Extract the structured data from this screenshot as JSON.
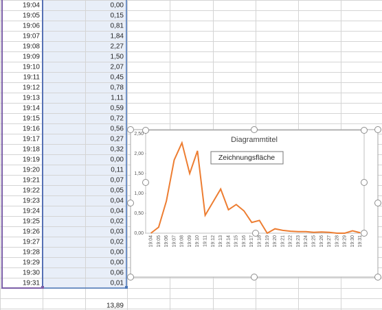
{
  "table": {
    "rows": [
      [
        "19:04",
        "0,00"
      ],
      [
        "19:05",
        "0,15"
      ],
      [
        "19:06",
        "0,81"
      ],
      [
        "19:07",
        "1,84"
      ],
      [
        "19:08",
        "2,27"
      ],
      [
        "19:09",
        "1,50"
      ],
      [
        "19:10",
        "2,07"
      ],
      [
        "19:11",
        "0,45"
      ],
      [
        "19:12",
        "0,78"
      ],
      [
        "19:13",
        "1,11"
      ],
      [
        "19:14",
        "0,59"
      ],
      [
        "19:15",
        "0,72"
      ],
      [
        "19:16",
        "0,56"
      ],
      [
        "19:17",
        "0,27"
      ],
      [
        "19:18",
        "0,32"
      ],
      [
        "19:19",
        "0,00"
      ],
      [
        "19:20",
        "0,11"
      ],
      [
        "19:21",
        "0,07"
      ],
      [
        "19:22",
        "0,05"
      ],
      [
        "19:23",
        "0,04"
      ],
      [
        "19:24",
        "0,04"
      ],
      [
        "19:25",
        "0,02"
      ],
      [
        "19:26",
        "0,03"
      ],
      [
        "19:27",
        "0,02"
      ],
      [
        "19:28",
        "0,00"
      ],
      [
        "19:29",
        "0,00"
      ],
      [
        "19:30",
        "0,06"
      ],
      [
        "19:31",
        "0,01"
      ]
    ],
    "total": "13,89"
  },
  "chart_data": {
    "type": "line",
    "title": "Diagrammtitel",
    "annotation": "Zeichnungsfläche",
    "categories": [
      "19:04",
      "19:05",
      "19:06",
      "19:07",
      "19:08",
      "19:09",
      "19:10",
      "19:11",
      "19:12",
      "19:13",
      "19:14",
      "19:15",
      "19:16",
      "19:17",
      "19:18",
      "19:19",
      "19:20",
      "19:21",
      "19:22",
      "19:23",
      "19:24",
      "19:25",
      "19:26",
      "19:27",
      "19:28",
      "19:29",
      "19:30",
      "19:31"
    ],
    "values": [
      0.0,
      0.15,
      0.81,
      1.84,
      2.27,
      1.5,
      2.07,
      0.45,
      0.78,
      1.11,
      0.59,
      0.72,
      0.56,
      0.27,
      0.32,
      0.0,
      0.11,
      0.07,
      0.05,
      0.04,
      0.04,
      0.02,
      0.03,
      0.02,
      0.0,
      0.0,
      0.06,
      0.01
    ],
    "color": "#ed7d31",
    "ylim": [
      0,
      2.5
    ],
    "yticks": [
      {
        "value": 0,
        "label": "0,00"
      },
      {
        "value": 0.5,
        "label": "0,50"
      },
      {
        "value": 1,
        "label": "1,00"
      },
      {
        "value": 1.5,
        "label": "1,50"
      },
      {
        "value": 2,
        "label": "2,00"
      },
      {
        "value": 2.5,
        "label": "2,50"
      }
    ]
  }
}
